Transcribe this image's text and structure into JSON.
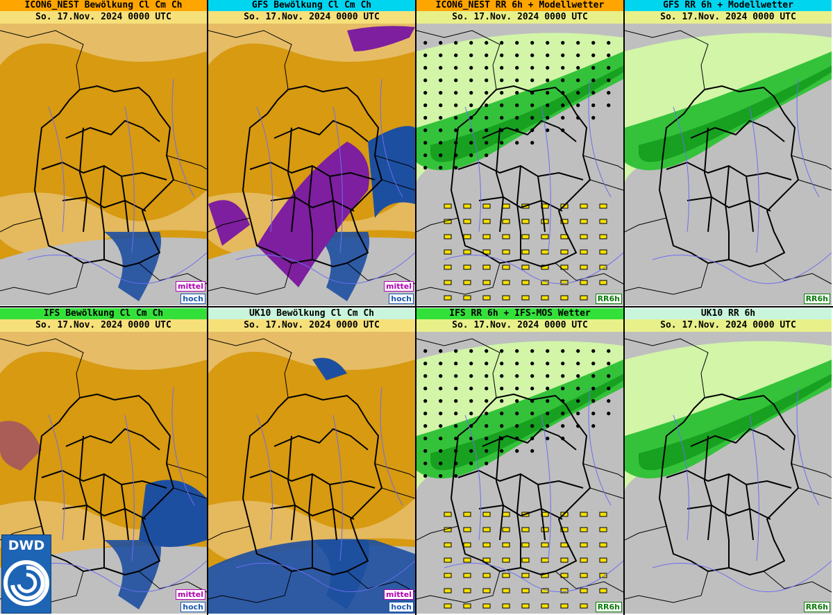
{
  "panels": [
    {
      "title": "ICON6_NEST Bewölkung Cl Cm Ch",
      "date": "So. 17.Nov. 2024 0000 UTC",
      "title_bg": "#ffa500",
      "date_bg": "#f6e07a",
      "type": "cloud",
      "badges": [
        "mittel",
        "hoch"
      ]
    },
    {
      "title": "GFS Bewölkung Cl Cm Ch",
      "date": "So. 17.Nov. 2024 0000 UTC",
      "title_bg": "#00d5f0",
      "date_bg": "#f6e07a",
      "type": "cloud",
      "badges": [
        "mittel",
        "hoch"
      ]
    },
    {
      "title": "ICON6_NEST RR 6h + Modellwetter",
      "date": "So. 17.Nov. 2024 0000 UTC",
      "title_bg": "#ffa500",
      "date_bg": "#e8f08a",
      "type": "rain",
      "badges": [
        "RR6h"
      ]
    },
    {
      "title": "GFS RR 6h + Modellwetter",
      "date": "So. 17.Nov. 2024 0000 UTC",
      "title_bg": "#00d5f0",
      "date_bg": "#e8f08a",
      "type": "rain",
      "badges": [
        "RR6h"
      ]
    },
    {
      "title": "IFS Bewölkung Cl Cm Ch",
      "date": "So. 17.Nov. 2024 0000 UTC",
      "title_bg": "#33e03a",
      "date_bg": "#f6e07a",
      "type": "cloud",
      "badges": [
        "mittel",
        "hoch"
      ]
    },
    {
      "title": "UK10 Bewölkung Cl Cm Ch",
      "date": "So. 17.Nov. 2024 0000 UTC",
      "title_bg": "#c8f5dc",
      "date_bg": "#f6e07a",
      "type": "cloud",
      "badges": [
        "mittel",
        "hoch"
      ]
    },
    {
      "title": "IFS RR 6h + IFS-MOS Wetter",
      "date": "So. 17.Nov. 2024 0000 UTC",
      "title_bg": "#33e03a",
      "date_bg": "#e8f08a",
      "type": "rain",
      "badges": [
        "RR6h"
      ]
    },
    {
      "title": "UK10 RR 6h",
      "date": "So. 17.Nov. 2024 0000 UTC",
      "title_bg": "#c8f5dc",
      "date_bg": "#e8f08a",
      "type": "rain",
      "badges": [
        "RR6h"
      ]
    }
  ],
  "logo": {
    "text": "DWD",
    "icon": "dwd-swirl-icon"
  },
  "colors": {
    "cloud_low": "#d79a10",
    "cloud_light": "#e8c070",
    "cloud_mid": "#7d1f9e",
    "cloud_high": "#1d4fa0",
    "ground": "#bfbfbf",
    "rain_light": "#d2f5a8",
    "rain_mid": "#34c23a",
    "rain_heavy": "#18a020"
  }
}
